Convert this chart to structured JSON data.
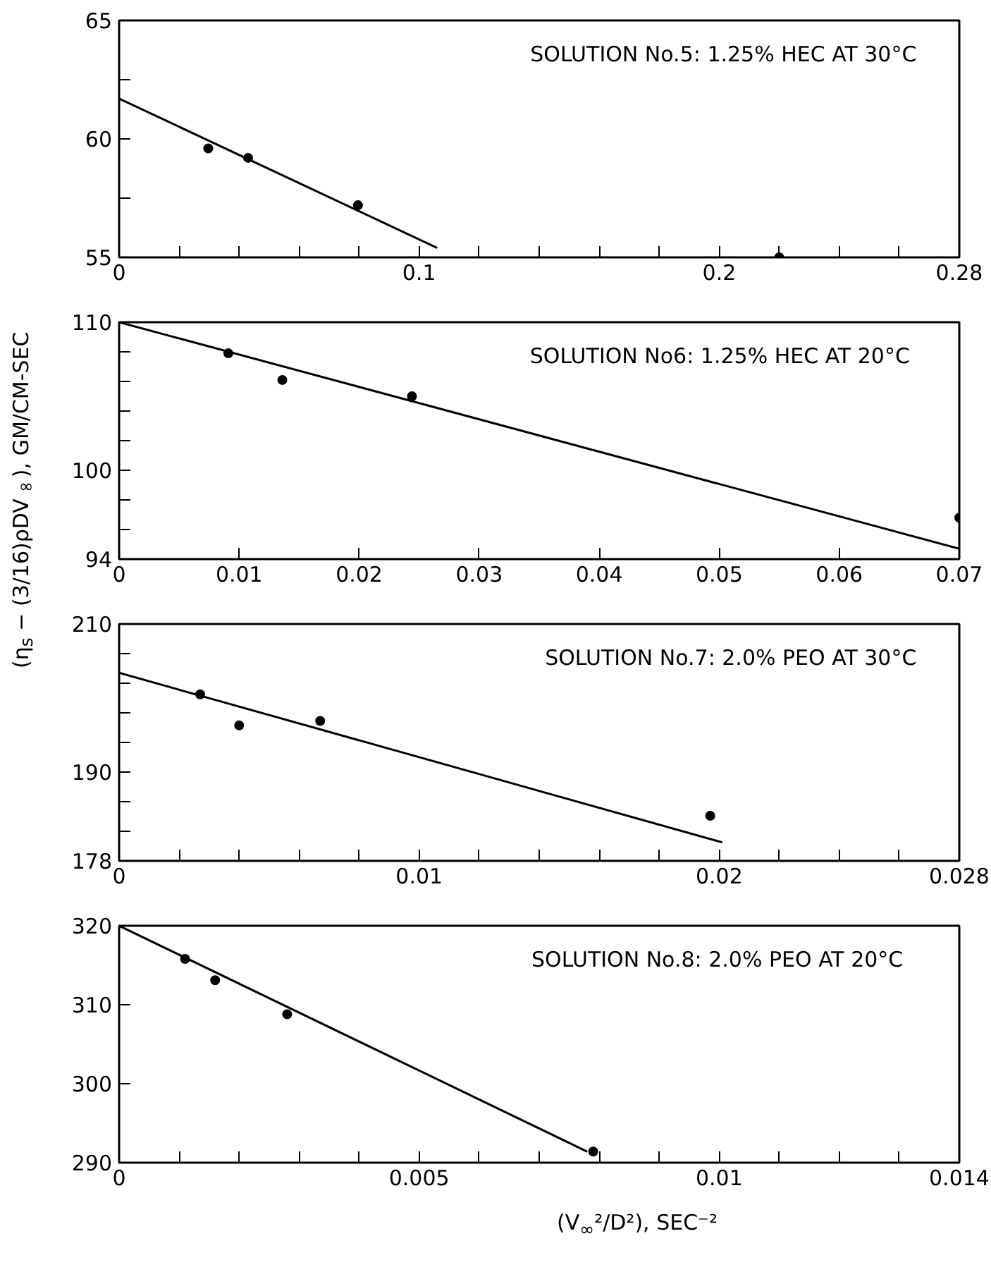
{
  "chart_data": [
    {
      "type": "scatter",
      "annotations": [
        "SOLUTION  No.5: 1.25% HEC  AT  30°C"
      ],
      "grid": false,
      "xlim": [
        0,
        0.28
      ],
      "ylim": [
        55,
        65
      ],
      "xticks": [
        0,
        {
          "value": 0.02,
          "label": null
        },
        {
          "value": 0.04,
          "label": null
        },
        {
          "value": 0.06,
          "label": null
        },
        {
          "value": 0.08,
          "label": null
        },
        0.1,
        {
          "value": 0.12,
          "label": null
        },
        {
          "value": 0.14,
          "label": null
        },
        {
          "value": 0.16,
          "label": null
        },
        {
          "value": 0.18,
          "label": null
        },
        0.2,
        {
          "value": 0.22,
          "label": null
        },
        {
          "value": 0.24,
          "label": null
        },
        {
          "value": 0.26,
          "label": null
        },
        0.28
      ],
      "yticks": [
        55,
        {
          "value": 57.5,
          "label": null
        },
        60,
        {
          "value": 62.5,
          "label": null
        },
        65
      ],
      "series": [
        {
          "marker": "circle",
          "color": "#000000",
          "x": [
            0.0297,
            0.043,
            0.0796,
            0.22
          ],
          "values": [
            59.6,
            59.2,
            57.2,
            55.0
          ]
        },
        {
          "type": "line",
          "color": "#000000",
          "line_style": "solid",
          "x": [
            0,
            0.106
          ],
          "values": [
            61.7,
            55.4
          ]
        }
      ]
    },
    {
      "type": "scatter",
      "annotations": [
        "SOLUTION  No6: 1.25%  HEC  AT  20°C"
      ],
      "grid": false,
      "ylabel": "(η$_{s}$ − (3/16)ρDV$_{∞}$), GM/CM-SEC",
      "xlim": [
        0,
        0.07
      ],
      "ylim": [
        94,
        110
      ],
      "xticks": [
        0,
        0.01,
        0.02,
        0.03,
        0.04,
        0.05,
        0.06,
        0.07
      ],
      "yticks": [
        94,
        {
          "value": 96,
          "label": null
        },
        {
          "value": 98,
          "label": null
        },
        100,
        {
          "value": 102,
          "label": null
        },
        {
          "value": 104,
          "label": null
        },
        {
          "value": 106,
          "label": null
        },
        {
          "value": 108,
          "label": null
        },
        110
      ],
      "series": [
        {
          "marker": "circle",
          "color": "#000000",
          "x": [
            0.0091,
            0.0136,
            0.0244,
            0.07
          ],
          "values": [
            107.9,
            106.1,
            105.0,
            96.8
          ]
        },
        {
          "type": "line",
          "color": "#000000",
          "line_style": "solid",
          "x": [
            0,
            0.07
          ],
          "values": [
            110,
            94.7
          ]
        }
      ]
    },
    {
      "type": "scatter",
      "annotations": [
        "SOLUTION  No.7: 2.0% PEO  AT  30°C"
      ],
      "grid": false,
      "xlim": [
        0,
        0.028
      ],
      "ylim": [
        178,
        210
      ],
      "xticks": [
        0,
        {
          "value": 0.002,
          "label": null
        },
        {
          "value": 0.004,
          "label": null
        },
        {
          "value": 0.006,
          "label": null
        },
        {
          "value": 0.008,
          "label": null
        },
        0.01,
        {
          "value": 0.012,
          "label": null
        },
        {
          "value": 0.014,
          "label": null
        },
        {
          "value": 0.016,
          "label": null
        },
        {
          "value": 0.018,
          "label": null
        },
        0.02,
        {
          "value": 0.022,
          "label": null
        },
        {
          "value": 0.024,
          "label": null
        },
        {
          "value": 0.026,
          "label": null
        },
        0.028
      ],
      "yticks": [
        178,
        {
          "value": 182,
          "label": null
        },
        {
          "value": 186,
          "label": null
        },
        190,
        {
          "value": 194,
          "label": null
        },
        {
          "value": 198,
          "label": null
        },
        {
          "value": 202,
          "label": null
        },
        {
          "value": 206,
          "label": null
        },
        210
      ],
      "series": [
        {
          "marker": "circle",
          "color": "#000000",
          "x": [
            0.0027,
            0.004,
            0.0067,
            0.0197
          ],
          "values": [
            200.5,
            196.3,
            196.9,
            184.1
          ]
        },
        {
          "type": "line",
          "color": "#000000",
          "line_style": "solid",
          "x": [
            0,
            0.0201
          ],
          "values": [
            203.4,
            180.5
          ]
        }
      ]
    },
    {
      "type": "scatter",
      "annotations": [
        "SOLUTION  No.8:  2.0%  PEO  AT  20°C"
      ],
      "grid": false,
      "xlabel": "(V$_{∞}$²/D²), SEC⁻²",
      "xlim": [
        0,
        0.014
      ],
      "ylim": [
        290,
        320
      ],
      "xticks": [
        0,
        {
          "value": 0.001,
          "label": null
        },
        {
          "value": 0.002,
          "label": null
        },
        {
          "value": 0.003,
          "label": null
        },
        {
          "value": 0.004,
          "label": null
        },
        0.005,
        {
          "value": 0.006,
          "label": null
        },
        {
          "value": 0.007,
          "label": null
        },
        {
          "value": 0.008,
          "label": null
        },
        {
          "value": 0.009,
          "label": null
        },
        0.01,
        {
          "value": 0.011,
          "label": null
        },
        {
          "value": 0.012,
          "label": null
        },
        {
          "value": 0.013,
          "label": null
        },
        0.014
      ],
      "yticks": [
        290,
        300,
        310,
        320
      ],
      "series": [
        {
          "marker": "circle",
          "color": "#000000",
          "x": [
            0.0011,
            0.0016,
            0.0028,
            0.0079
          ],
          "values": [
            315.8,
            313.1,
            308.8,
            291.4
          ]
        },
        {
          "type": "line",
          "color": "#000000",
          "line_style": "solid",
          "x": [
            0,
            0.0078
          ],
          "values": [
            320,
            291.4
          ]
        }
      ]
    }
  ]
}
